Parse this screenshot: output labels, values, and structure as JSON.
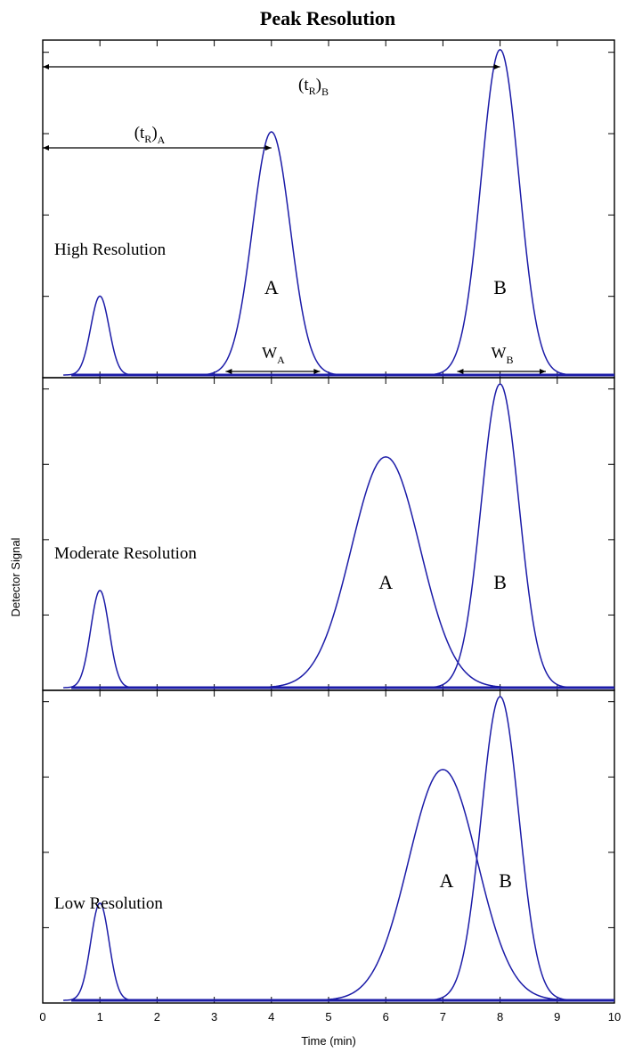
{
  "chart_data": {
    "type": "line",
    "title": "Peak Resolution",
    "xlabel": "Time (min)",
    "ylabel": "Detector Signal",
    "xlim": [
      0,
      10
    ],
    "x_ticks": [
      "0",
      "1",
      "2",
      "3",
      "4",
      "5",
      "6",
      "7",
      "8",
      "9",
      "10"
    ],
    "colors": {
      "curve": "#1c1ca8",
      "axes": "#000000"
    },
    "panels": [
      {
        "label": "High Resolution",
        "ylim": [
          0,
          1.0
        ],
        "peaks": [
          {
            "name": "",
            "center": 1.0,
            "height": 0.24,
            "sigma": 0.16
          },
          {
            "name": "A",
            "center": 4.0,
            "height": 0.74,
            "sigma": 0.33
          },
          {
            "name": "B",
            "center": 8.0,
            "height": 0.99,
            "sigma": 0.33
          }
        ],
        "annotations": {
          "tR_A": {
            "base": "(t",
            "sub1": "R",
            "close": ")",
            "sub2": "A",
            "from": 0.0,
            "to": 4.0
          },
          "tR_B": {
            "base": "(t",
            "sub1": "R",
            "close": ")",
            "sub2": "B",
            "from": 0.0,
            "to": 8.0
          },
          "W_A": {
            "base": "W",
            "sub": "A",
            "from": 3.2,
            "to": 4.85
          },
          "W_B": {
            "base": "W",
            "sub": "B",
            "from": 7.25,
            "to": 8.8
          }
        }
      },
      {
        "label": "Moderate Resolution",
        "ylim": [
          0,
          1.0
        ],
        "peaks": [
          {
            "name": "",
            "center": 1.0,
            "height": 0.32,
            "sigma": 0.16
          },
          {
            "name": "A",
            "center": 6.0,
            "height": 0.76,
            "sigma": 0.6
          },
          {
            "name": "B",
            "center": 8.0,
            "height": 1.0,
            "sigma": 0.33
          }
        ]
      },
      {
        "label": "Low Resolution",
        "ylim": [
          0,
          1.0
        ],
        "peaks": [
          {
            "name": "",
            "center": 1.0,
            "height": 0.32,
            "sigma": 0.16
          },
          {
            "name": "A",
            "center": 7.0,
            "height": 0.76,
            "sigma": 0.6
          },
          {
            "name": "B",
            "center": 8.0,
            "height": 1.0,
            "sigma": 0.33
          }
        ]
      }
    ]
  }
}
